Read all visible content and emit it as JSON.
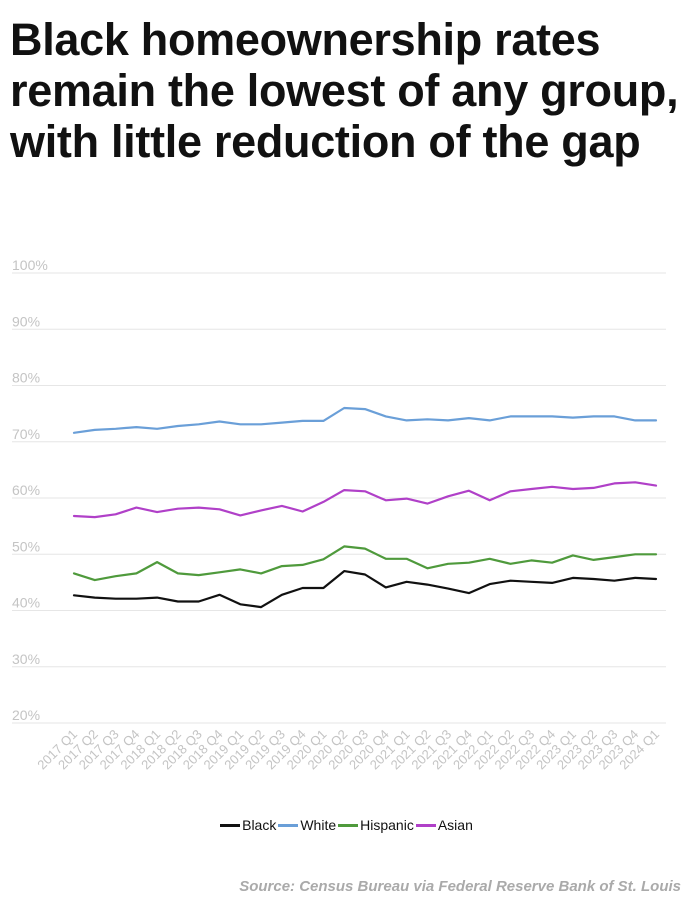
{
  "title": "Black homeownership rates remain the lowest of any group, with little reduction of the gap",
  "source": "Source: Census Bureau via Federal Reserve Bank of St. Louis",
  "colors": {
    "Black": "#111111",
    "White": "#6a9fd8",
    "Hispanic": "#4f9a3c",
    "Asian": "#b040c8",
    "grid": "#e6e6e6",
    "tick": "#c4c4c4"
  },
  "chart_data": {
    "type": "line",
    "title": "Black homeownership rates remain the lowest of any group, with little reduction of the gap",
    "xlabel": "",
    "ylabel": "",
    "ylim": [
      20,
      100
    ],
    "yticks": [
      "20%",
      "30%",
      "40%",
      "50%",
      "60%",
      "70%",
      "80%",
      "90%",
      "100%"
    ],
    "ytick_values": [
      20,
      30,
      40,
      50,
      60,
      70,
      80,
      90,
      100
    ],
    "grid": true,
    "legend_position": "bottom",
    "categories": [
      "2017 Q1",
      "2017 Q2",
      "2017 Q3",
      "2017 Q4",
      "2018 Q1",
      "2018 Q2",
      "2018 Q3",
      "2018 Q4",
      "2019 Q1",
      "2019 Q2",
      "2019 Q3",
      "2019 Q4",
      "2020 Q1",
      "2020 Q2",
      "2020 Q3",
      "2020 Q4",
      "2021 Q1",
      "2021 Q2",
      "2021 Q3",
      "2021 Q4",
      "2022 Q1",
      "2022 Q2",
      "2022 Q3",
      "2022 Q4",
      "2023 Q1",
      "2023 Q2",
      "2023 Q3",
      "2023 Q4",
      "2024 Q1"
    ],
    "series": [
      {
        "name": "Black",
        "values": [
          42.7,
          42.3,
          42.1,
          42.1,
          42.3,
          41.6,
          41.6,
          42.8,
          41.1,
          40.6,
          42.8,
          44.0,
          44.0,
          47.0,
          46.4,
          44.1,
          45.1,
          44.6,
          43.9,
          43.1,
          44.7,
          45.3,
          45.1,
          44.9,
          45.8,
          45.6,
          45.3,
          45.8,
          45.6
        ]
      },
      {
        "name": "White",
        "values": [
          71.6,
          72.1,
          72.3,
          72.6,
          72.3,
          72.8,
          73.1,
          73.6,
          73.1,
          73.1,
          73.4,
          73.7,
          73.7,
          76.0,
          75.8,
          74.5,
          73.8,
          74.0,
          73.8,
          74.2,
          73.8,
          74.5,
          74.5,
          74.5,
          74.3,
          74.5,
          74.5,
          73.8,
          73.8
        ]
      },
      {
        "name": "Hispanic",
        "values": [
          46.6,
          45.4,
          46.1,
          46.6,
          48.6,
          46.6,
          46.3,
          46.8,
          47.3,
          46.6,
          47.9,
          48.1,
          49.1,
          51.4,
          51.0,
          49.2,
          49.2,
          47.5,
          48.3,
          48.5,
          49.2,
          48.3,
          48.9,
          48.5,
          49.8,
          49.0,
          49.5,
          50.0,
          50.0
        ]
      },
      {
        "name": "Asian",
        "values": [
          56.8,
          56.6,
          57.1,
          58.3,
          57.5,
          58.1,
          58.3,
          58.0,
          56.9,
          57.8,
          58.6,
          57.6,
          59.3,
          61.4,
          61.2,
          59.6,
          59.9,
          59.0,
          60.3,
          61.3,
          59.6,
          61.2,
          61.6,
          62.0,
          61.6,
          61.8,
          62.6,
          62.8,
          62.2
        ]
      }
    ]
  }
}
